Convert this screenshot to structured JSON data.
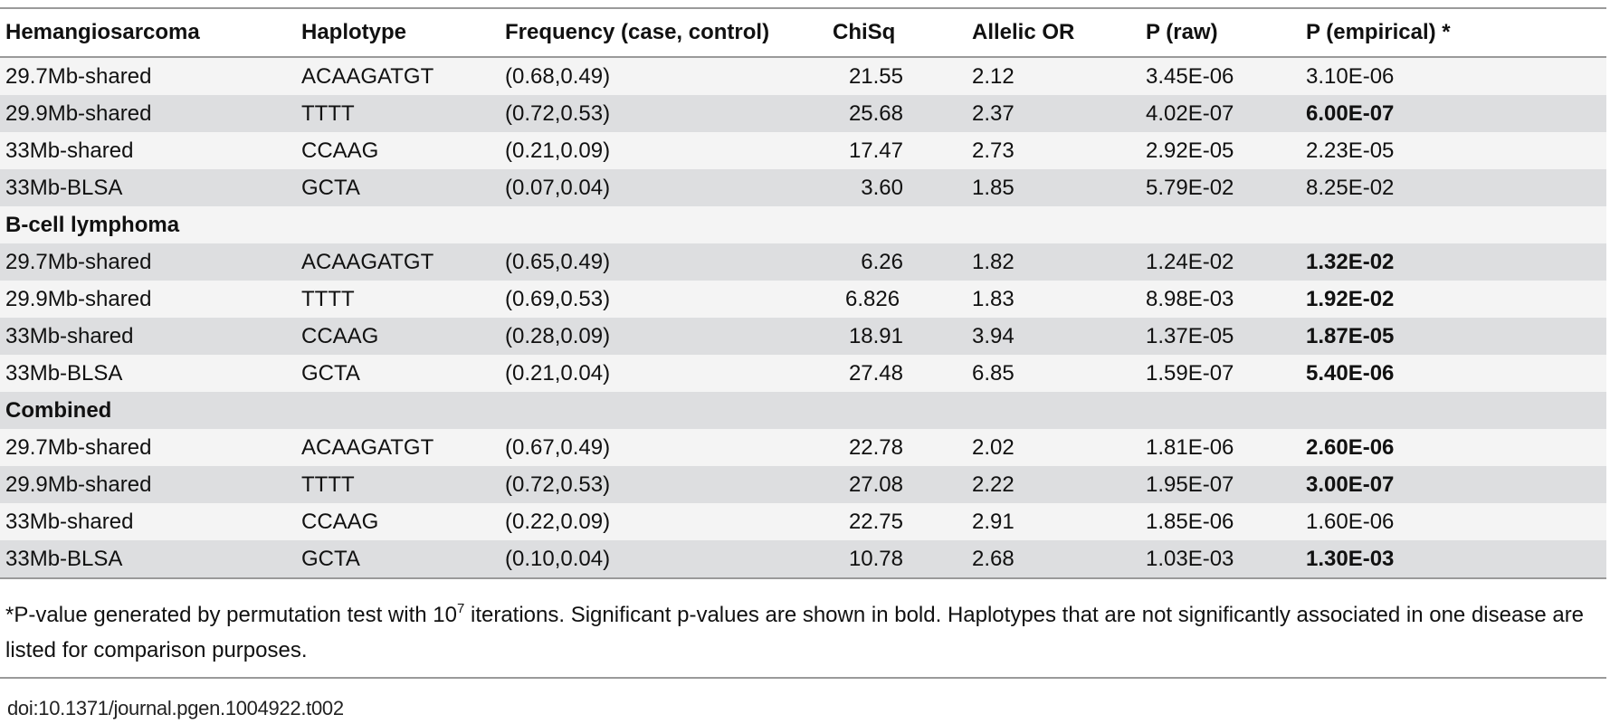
{
  "table": {
    "headers": [
      "Hemangiosarcoma",
      "Haplotype",
      "Frequency (case, control)",
      "ChiSq",
      "Allelic OR",
      "P (raw)",
      "P (empirical) *"
    ],
    "sections": [
      {
        "label": "",
        "rows": [
          {
            "region": "29.7Mb-shared",
            "haplotype": "ACAAGATGT",
            "frequency": "(0.68,0.49)",
            "chisq": "21.55",
            "or": "2.12",
            "p_raw": "3.45E-06",
            "p_emp": "3.10E-06",
            "bold": false
          },
          {
            "region": "29.9Mb-shared",
            "haplotype": "TTTT",
            "frequency": "(0.72,0.53)",
            "chisq": "25.68",
            "or": "2.37",
            "p_raw": "4.02E-07",
            "p_emp": "6.00E-07",
            "bold": true
          },
          {
            "region": "33Mb-shared",
            "haplotype": "CCAAG",
            "frequency": "(0.21,0.09)",
            "chisq": "17.47",
            "or": "2.73",
            "p_raw": "2.92E-05",
            "p_emp": "2.23E-05",
            "bold": false
          },
          {
            "region": "33Mb-BLSA",
            "haplotype": "GCTA",
            "frequency": "(0.07,0.04)",
            "chisq": "3.60",
            "or": "1.85",
            "p_raw": "5.79E-02",
            "p_emp": "8.25E-02",
            "bold": false
          }
        ]
      },
      {
        "label": "B-cell lymphoma",
        "rows": [
          {
            "region": "29.7Mb-shared",
            "haplotype": "ACAAGATGT",
            "frequency": "(0.65,0.49)",
            "chisq": "6.26",
            "or": "1.82",
            "p_raw": "1.24E-02",
            "p_emp": "1.32E-02",
            "bold": true
          },
          {
            "region": "29.9Mb-shared",
            "haplotype": "TTTT",
            "frequency": "(0.69,0.53)",
            "chisq": "6.826",
            "or": "1.83",
            "p_raw": "8.98E-03",
            "p_emp": "1.92E-02",
            "bold": true
          },
          {
            "region": "33Mb-shared",
            "haplotype": "CCAAG",
            "frequency": "(0.28,0.09)",
            "chisq": "18.91",
            "or": "3.94",
            "p_raw": "1.37E-05",
            "p_emp": "1.87E-05",
            "bold": true
          },
          {
            "region": "33Mb-BLSA",
            "haplotype": "GCTA",
            "frequency": "(0.21,0.04)",
            "chisq": "27.48",
            "or": "6.85",
            "p_raw": "1.59E-07",
            "p_emp": "5.40E-06",
            "bold": true
          }
        ]
      },
      {
        "label": "Combined",
        "rows": [
          {
            "region": "29.7Mb-shared",
            "haplotype": "ACAAGATGT",
            "frequency": "(0.67,0.49)",
            "chisq": "22.78",
            "or": "2.02",
            "p_raw": "1.81E-06",
            "p_emp": "2.60E-06",
            "bold": true
          },
          {
            "region": "29.9Mb-shared",
            "haplotype": "TTTT",
            "frequency": "(0.72,0.53)",
            "chisq": "27.08",
            "or": "2.22",
            "p_raw": "1.95E-07",
            "p_emp": "3.00E-07",
            "bold": true
          },
          {
            "region": "33Mb-shared",
            "haplotype": "CCAAG",
            "frequency": "(0.22,0.09)",
            "chisq": "22.75",
            "or": "2.91",
            "p_raw": "1.85E-06",
            "p_emp": "1.60E-06",
            "bold": false
          },
          {
            "region": "33Mb-BLSA",
            "haplotype": "GCTA",
            "frequency": "(0.10,0.04)",
            "chisq": "10.78",
            "or": "2.68",
            "p_raw": "1.03E-03",
            "p_emp": "1.30E-03",
            "bold": true
          }
        ]
      }
    ]
  },
  "footnote": {
    "prefix": "*P-value generated by permutation test with 10",
    "superscript": "7",
    "suffix": " iterations. Significant p-values are shown in bold. Haplotypes that are not significantly associated in one disease are listed for comparison purposes."
  },
  "doi": "doi:10.1371/journal.pgen.1004922.t002"
}
